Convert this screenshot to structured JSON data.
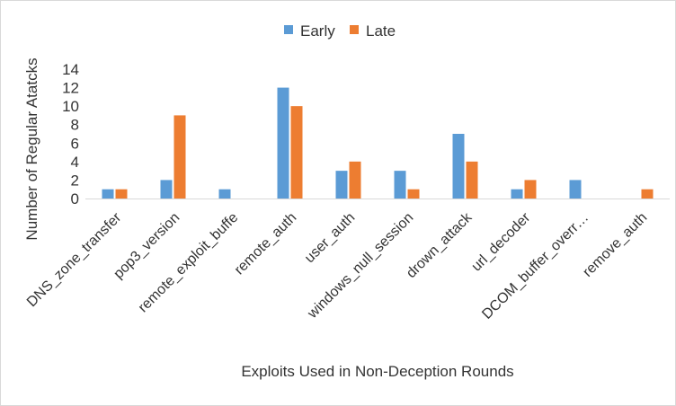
{
  "chart_data": {
    "type": "bar",
    "title": "",
    "xlabel": "Exploits Used in Non-Deception Rounds",
    "ylabel": "Number of Regular Atatcks",
    "ylim": [
      0,
      14
    ],
    "yticks": [
      0,
      2,
      4,
      6,
      8,
      10,
      12,
      14
    ],
    "grid": false,
    "legend_position": "top",
    "categories": [
      "DNS_zone_transfer",
      "pop3_version",
      "remote_exploit_buffe",
      "remote_auth",
      "user_auth",
      "windows_null_session",
      "drown_attack",
      "url_decoder",
      "DCOM_buffer_overr…",
      "remove_auth"
    ],
    "series": [
      {
        "name": "Early",
        "color": "#5b9bd5",
        "values": [
          1,
          2,
          1,
          12,
          3,
          3,
          7,
          1,
          2,
          0
        ]
      },
      {
        "name": "Late",
        "color": "#ed7d31",
        "values": [
          1,
          9,
          0,
          10,
          4,
          1,
          4,
          2,
          0,
          1
        ]
      }
    ]
  }
}
